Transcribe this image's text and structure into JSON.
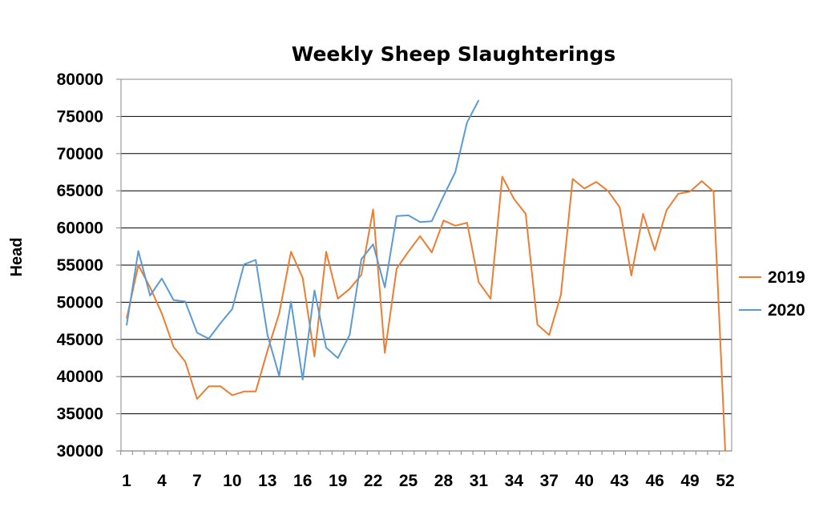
{
  "chart_data": {
    "type": "line",
    "title": "Weekly Sheep Slaughterings",
    "xlabel": "",
    "ylabel": "Head",
    "ylim": [
      30000,
      80000
    ],
    "ytick_step": 5000,
    "yticks": [
      "30000",
      "35000",
      "40000",
      "45000",
      "50000",
      "55000",
      "60000",
      "65000",
      "70000",
      "75000",
      "80000"
    ],
    "xlim": [
      1,
      52
    ],
    "xticks": [
      "1",
      "4",
      "7",
      "10",
      "13",
      "16",
      "19",
      "22",
      "25",
      "28",
      "31",
      "34",
      "37",
      "40",
      "43",
      "46",
      "49",
      "52"
    ],
    "grid": true,
    "legend_position": "right",
    "series": [
      {
        "name": "2019",
        "color": "#ED7D31",
        "x": [
          1,
          2,
          3,
          4,
          5,
          6,
          7,
          8,
          9,
          10,
          11,
          12,
          13,
          14,
          15,
          16,
          17,
          18,
          19,
          20,
          21,
          22,
          23,
          24,
          25,
          26,
          27,
          28,
          29,
          30,
          31,
          32,
          33,
          34,
          35,
          36,
          37,
          38,
          39,
          40,
          41,
          42,
          43,
          44,
          45,
          46,
          47,
          48,
          49,
          50,
          51,
          52
        ],
        "values": [
          47800,
          55000,
          52000,
          48500,
          44000,
          42000,
          37000,
          38700,
          38700,
          37500,
          38000,
          38000,
          43500,
          48500,
          56800,
          53300,
          42700,
          56800,
          50500,
          51800,
          53700,
          62500,
          43200,
          54500,
          56800,
          58900,
          56700,
          61000,
          60300,
          60700,
          52700,
          50500,
          66900,
          63900,
          61900,
          47000,
          45600,
          51000,
          66600,
          65300,
          66200,
          65000,
          62800,
          53600,
          61900,
          57000,
          62400,
          64600,
          64900,
          66300,
          64900,
          30000
        ]
      },
      {
        "name": "2020",
        "color": "#5B9BD5",
        "x": [
          1,
          2,
          3,
          4,
          5,
          6,
          7,
          8,
          9,
          10,
          11,
          12,
          13,
          14,
          15,
          16,
          17,
          18,
          19,
          20,
          21,
          22,
          23,
          24,
          25,
          26,
          27,
          28,
          29,
          30,
          31
        ],
        "values": [
          46900,
          56900,
          50900,
          53200,
          50300,
          50100,
          45900,
          45100,
          47200,
          49100,
          55100,
          55700,
          45600,
          40100,
          50100,
          39600,
          51600,
          43900,
          42500,
          45600,
          55800,
          57800,
          52000,
          61600,
          61700,
          60800,
          60900,
          64300,
          67500,
          74200,
          77200
        ]
      }
    ]
  }
}
